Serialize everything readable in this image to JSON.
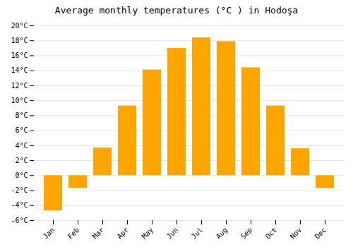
{
  "chart_data": {
    "type": "bar",
    "title": "Average monthly temperatures (°C ) in Hodoşa",
    "categories": [
      "Jan",
      "Feb",
      "Mar",
      "Apr",
      "May",
      "Jun",
      "Jul",
      "Aug",
      "Sep",
      "Oct",
      "Nov",
      "Dec"
    ],
    "values": [
      -4.7,
      -1.7,
      3.7,
      9.3,
      14.1,
      17.0,
      18.4,
      17.9,
      14.4,
      9.3,
      3.6,
      -1.7
    ],
    "color": "#FFA500",
    "ylim": [
      -6,
      20
    ],
    "yticks": [
      {
        "value": -6,
        "label": "-6°C"
      },
      {
        "value": -4,
        "label": "-4°C"
      },
      {
        "value": -2,
        "label": "-2°C"
      },
      {
        "value": 0,
        "label": "0°C"
      },
      {
        "value": 2,
        "label": "2°C"
      },
      {
        "value": 4,
        "label": "4°C"
      },
      {
        "value": 6,
        "label": "6°C"
      },
      {
        "value": 8,
        "label": "8°C"
      },
      {
        "value": 10,
        "label": "10°C"
      },
      {
        "value": 12,
        "label": "12°C"
      },
      {
        "value": 14,
        "label": "14°C"
      },
      {
        "value": 16,
        "label": "16°C"
      },
      {
        "value": 18,
        "label": "18°C"
      },
      {
        "value": 20,
        "label": "20°C"
      }
    ],
    "grid": true
  }
}
